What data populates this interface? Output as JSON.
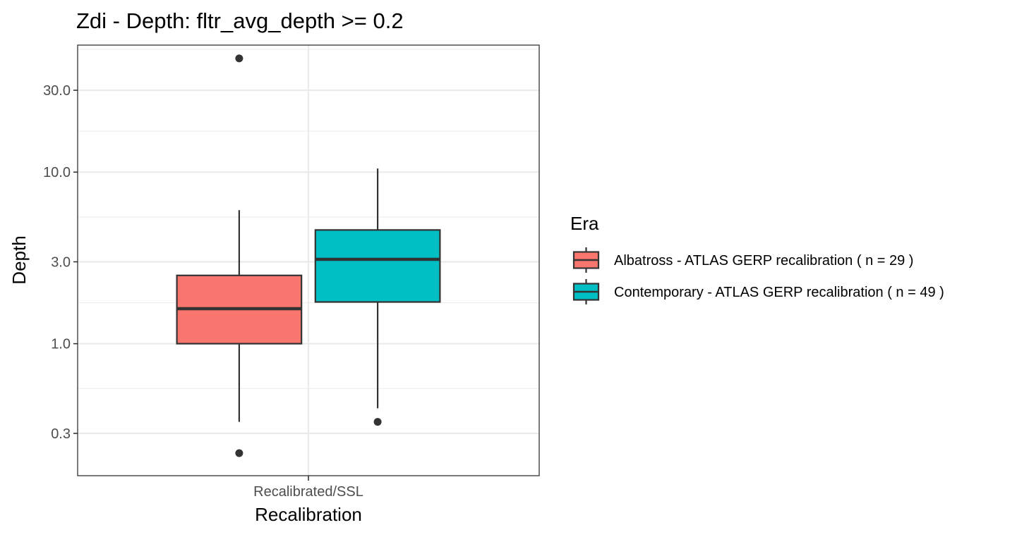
{
  "chart_data": {
    "type": "box",
    "title": "Zdi - Depth: fltr_avg_depth >=  0.2",
    "xlabel": "Recalibration",
    "ylabel": "Depth",
    "categories": [
      "Recalibrated/SSL"
    ],
    "y_scale": "log10",
    "ylim": [
      0.17,
      55
    ],
    "y_ticks": [
      0.3,
      1.0,
      3.0,
      10.0,
      30.0
    ],
    "y_tick_labels": [
      "0.3",
      "1.0",
      "3.0",
      "10.0",
      "30.0"
    ],
    "grid": true,
    "legend": {
      "title": "Era",
      "position": "right"
    },
    "series": [
      {
        "name": "Albatross - ATLAS GERP recalibration ( n = 29 )",
        "color": "#F8766D",
        "category": "Recalibrated/SSL",
        "whisker_low": 0.35,
        "q1": 1.0,
        "median": 1.6,
        "q3": 2.5,
        "whisker_high": 6.0,
        "outliers": [
          0.23,
          46.0
        ]
      },
      {
        "name": "Contemporary - ATLAS GERP recalibration ( n = 49 )",
        "color": "#00BFC4",
        "category": "Recalibrated/SSL",
        "whisker_low": 0.42,
        "q1": 1.75,
        "median": 3.1,
        "q3": 4.6,
        "whisker_high": 10.5,
        "outliers": [
          0.35
        ]
      }
    ]
  }
}
